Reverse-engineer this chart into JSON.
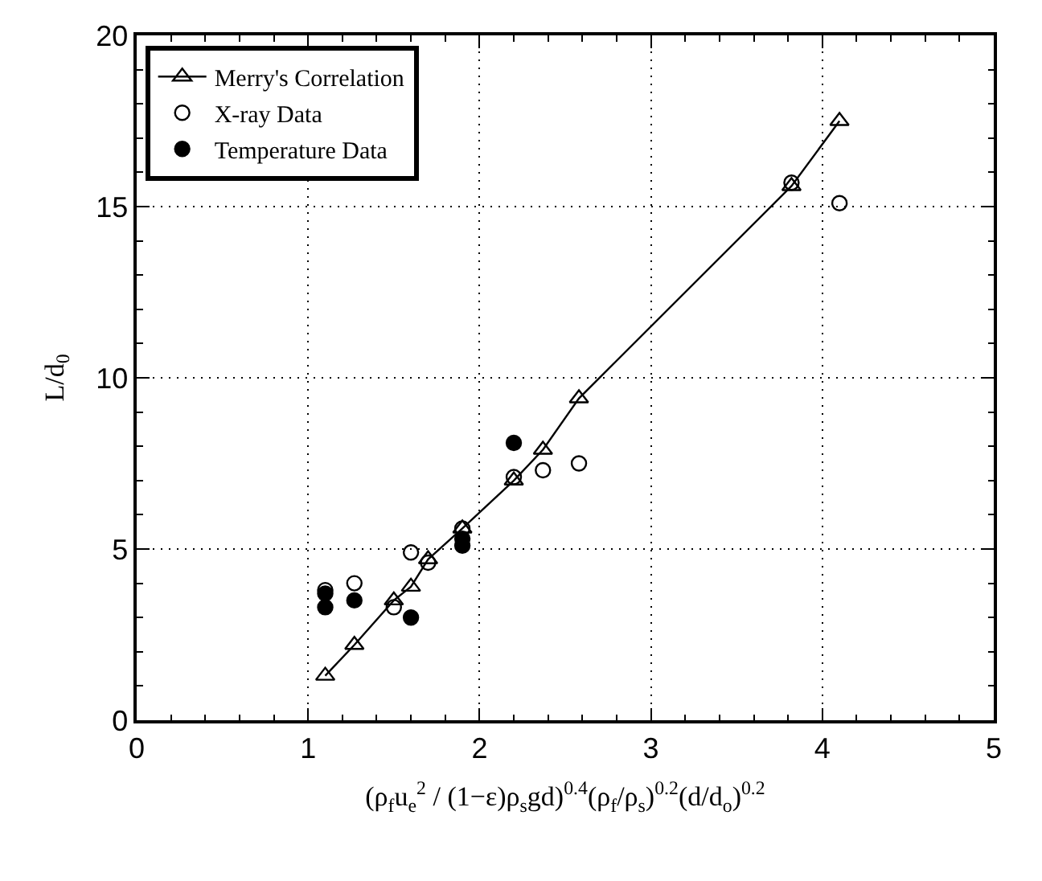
{
  "chart_data": {
    "type": "scatter",
    "xlabel": "(ρ$_{f}$u$_{e}$$^{2}$ / (1−ε)ρ$_{s}$gd)$^{0.4}$(ρ$_{f}$/ρ$_{s}$)$^{0.2}$(d/d$_{o}$)$^{0.2}$",
    "ylabel": "L/d$_{0}$",
    "xlim": [
      0,
      5
    ],
    "ylim": [
      0,
      20
    ],
    "xticks": [
      0,
      1,
      2,
      3,
      4,
      5
    ],
    "yticks": [
      0,
      5,
      10,
      15,
      20
    ],
    "grid": true,
    "legend": "top left",
    "series": [
      {
        "name": "Merry's Correlation",
        "type": "line",
        "marker": "triangle",
        "line_style": "solid",
        "color": "#000000",
        "x": [
          1.1,
          1.27,
          1.5,
          1.6,
          1.7,
          1.9,
          2.2,
          2.37,
          2.58,
          3.82,
          4.1
        ],
        "values": [
          1.3,
          2.2,
          3.5,
          3.9,
          4.7,
          5.6,
          7.0,
          7.9,
          9.4,
          15.6,
          17.5
        ]
      },
      {
        "name": "X-ray Data",
        "marker": "circle-open",
        "color": "#000000",
        "x": [
          1.1,
          1.27,
          1.5,
          1.6,
          1.7,
          1.9,
          2.2,
          2.37,
          2.58,
          3.82,
          4.1
        ],
        "values": [
          3.8,
          4.0,
          3.3,
          4.9,
          4.6,
          5.6,
          7.1,
          7.3,
          7.5,
          15.7,
          15.1
        ]
      },
      {
        "name": "Temperature Data",
        "marker": "circle",
        "color": "#000000",
        "x": [
          1.1,
          1.1,
          1.27,
          1.6,
          1.9,
          1.9,
          2.2
        ],
        "values": [
          3.3,
          3.7,
          3.5,
          3.0,
          5.1,
          5.3,
          8.1
        ]
      }
    ]
  }
}
